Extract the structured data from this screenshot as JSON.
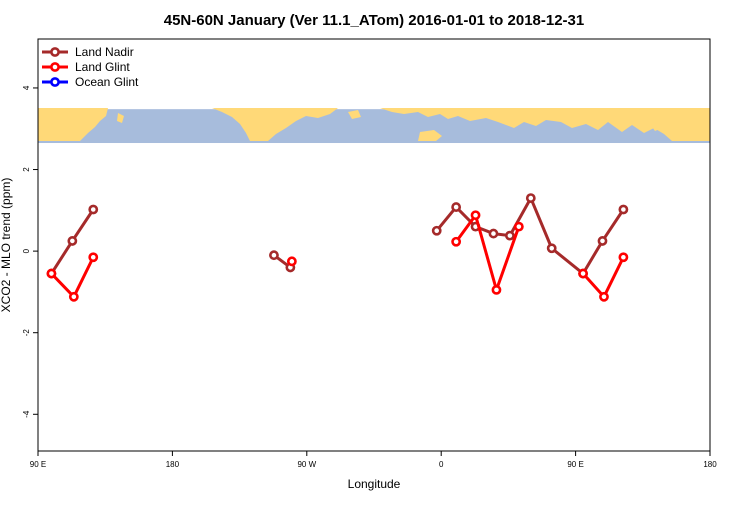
{
  "chart_data": {
    "type": "line",
    "title": "45N-60N January (Ver 11.1_ATom)   2016-01-01 to 2018-12-31",
    "xlabel": "Longitude",
    "ylabel": "XCO2 - MLO trend (ppm)",
    "xlim": [
      90,
      450
    ],
    "ylim": [
      -4.9,
      5.2
    ],
    "x_ticks": [
      {
        "value": 90,
        "label": "90 E"
      },
      {
        "value": 180,
        "label": "180"
      },
      {
        "value": 270,
        "label": "90 W"
      },
      {
        "value": 360,
        "label": "0"
      },
      {
        "value": 450,
        "label": "90 E"
      },
      {
        "value": 540,
        "label": "180"
      }
    ],
    "y_ticks": [
      {
        "value": -4,
        "label": "-4"
      },
      {
        "value": -2,
        "label": "-2"
      },
      {
        "value": 0,
        "label": "0"
      },
      {
        "value": 2,
        "label": "2"
      },
      {
        "value": 4,
        "label": "4"
      }
    ],
    "legend_position": "top-left",
    "map_band": {
      "y_range": [
        2.65,
        3.48
      ],
      "ocean_color": "#a7bcdc",
      "land_color": "#ffd978"
    },
    "series": [
      {
        "name": "Land Nadir",
        "color": "#a52a2a",
        "segments": [
          [
            [
              99,
              -0.55
            ],
            [
              113,
              0.25
            ],
            [
              127,
              1.02
            ]
          ],
          [
            [
              248,
              -0.1
            ],
            [
              259,
              -0.4
            ]
          ],
          [
            [
              357,
              0.5
            ],
            [
              370,
              1.08
            ],
            [
              383,
              0.6
            ],
            [
              395,
              0.43
            ],
            [
              406,
              0.38
            ],
            [
              420,
              1.3
            ],
            [
              434,
              0.07
            ],
            [
              455,
              -0.55
            ],
            [
              468,
              0.25
            ],
            [
              482,
              1.02
            ]
          ]
        ]
      },
      {
        "name": "Land Glint",
        "color": "#ff0000",
        "segments": [
          [
            [
              99,
              -0.55
            ],
            [
              114,
              -1.12
            ],
            [
              127,
              -0.15
            ]
          ],
          [
            [
              260,
              -0.25
            ]
          ],
          [
            [
              370,
              0.23
            ],
            [
              383,
              0.88
            ],
            [
              397,
              -0.95
            ],
            [
              412,
              0.6
            ]
          ],
          [
            [
              455,
              -0.55
            ],
            [
              469,
              -1.12
            ],
            [
              482,
              -0.15
            ]
          ]
        ]
      },
      {
        "name": "Ocean Glint",
        "color": "#0000ff",
        "segments": []
      }
    ]
  }
}
